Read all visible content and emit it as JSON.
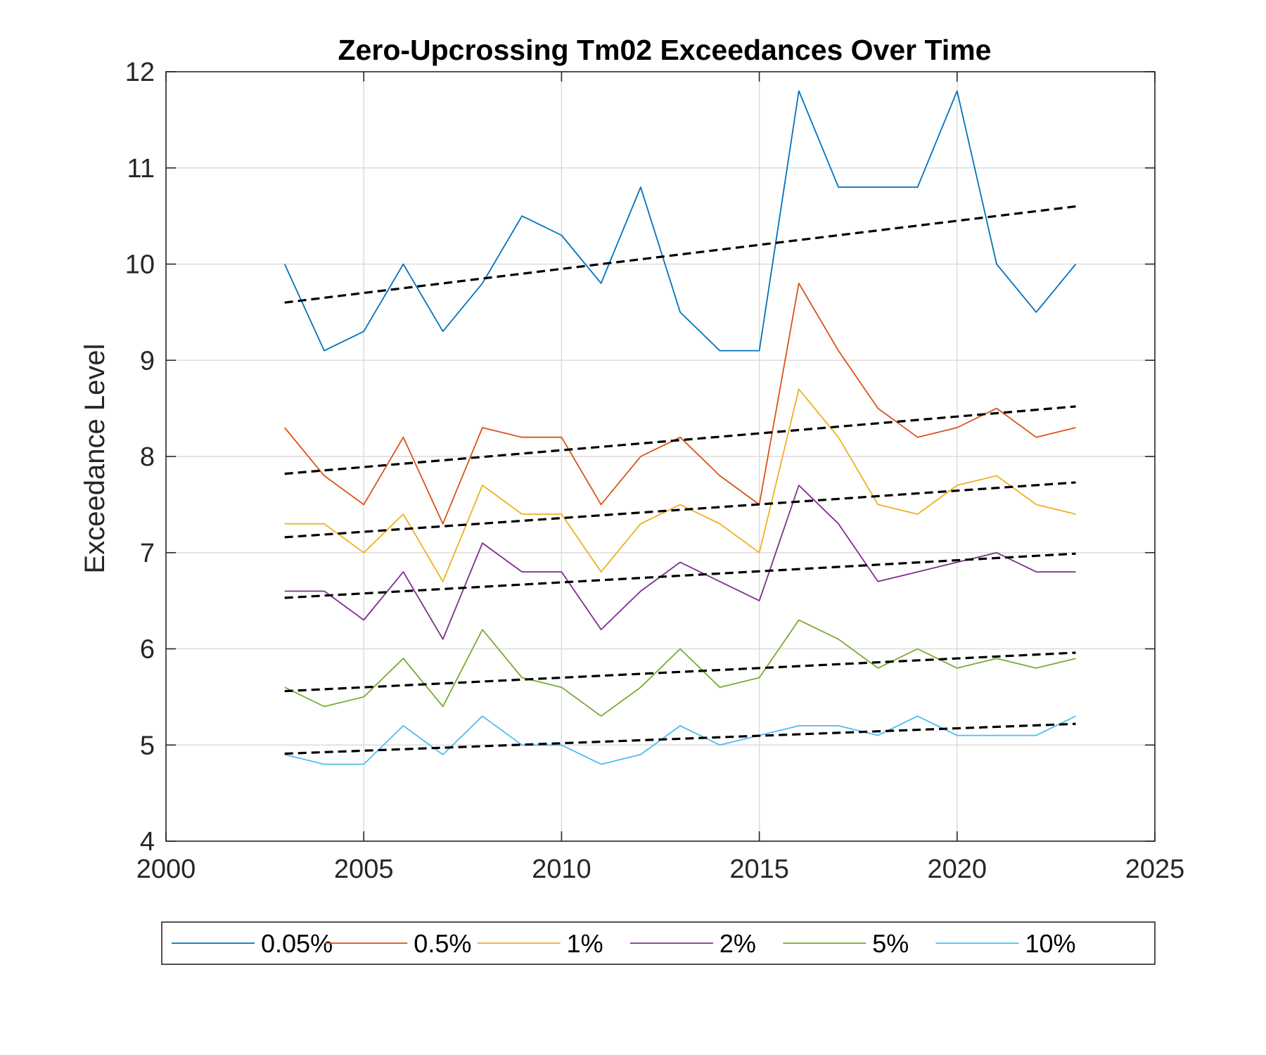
{
  "chart_data": {
    "type": "line",
    "title": "Zero-Upcrossing Tm02 Exceedances Over Time",
    "xlabel": "",
    "ylabel": "Exceedance Level",
    "xlim": [
      2000,
      2025
    ],
    "ylim": [
      4,
      12
    ],
    "xticks": [
      2000,
      2005,
      2010,
      2015,
      2020,
      2025
    ],
    "yticks": [
      4,
      5,
      6,
      7,
      8,
      9,
      10,
      11,
      12
    ],
    "xtick_labels": [
      "2000",
      "2005",
      "2010",
      "2015",
      "2020",
      "2025"
    ],
    "ytick_labels": [
      "4",
      "5",
      "6",
      "7",
      "8",
      "9",
      "10",
      "11",
      "12"
    ],
    "grid": true,
    "legend_position": "bottom-outside",
    "x": [
      2003,
      2004,
      2005,
      2006,
      2007,
      2008,
      2009,
      2010,
      2011,
      2012,
      2013,
      2014,
      2015,
      2016,
      2017,
      2018,
      2019,
      2020,
      2021,
      2022,
      2023
    ],
    "series": [
      {
        "name": "0.05%",
        "color": "#0072BD",
        "values": [
          10.0,
          9.1,
          9.3,
          10.0,
          9.3,
          9.8,
          10.5,
          10.3,
          9.8,
          10.8,
          9.5,
          9.1,
          9.1,
          11.8,
          10.8,
          10.8,
          10.8,
          11.8,
          10.0,
          9.5,
          10.0
        ]
      },
      {
        "name": "0.5%",
        "color": "#D95319",
        "values": [
          8.3,
          7.8,
          7.5,
          8.2,
          7.3,
          8.3,
          8.2,
          8.2,
          7.5,
          8.0,
          8.2,
          7.8,
          7.5,
          9.8,
          9.1,
          8.5,
          8.2,
          8.3,
          8.5,
          8.2,
          8.3
        ]
      },
      {
        "name": "1%",
        "color": "#EDB120",
        "values": [
          7.3,
          7.3,
          7.0,
          7.4,
          6.7,
          7.7,
          7.4,
          7.4,
          6.8,
          7.3,
          7.5,
          7.3,
          7.0,
          8.7,
          8.2,
          7.5,
          7.4,
          7.7,
          7.8,
          7.5,
          7.4
        ]
      },
      {
        "name": "2%",
        "color": "#7E2F8E",
        "values": [
          6.6,
          6.6,
          6.3,
          6.8,
          6.1,
          7.1,
          6.8,
          6.8,
          6.2,
          6.6,
          6.9,
          6.7,
          6.5,
          7.7,
          7.3,
          6.7,
          6.8,
          6.9,
          7.0,
          6.8,
          6.8
        ]
      },
      {
        "name": "5%",
        "color": "#77AC30",
        "values": [
          5.6,
          5.4,
          5.5,
          5.9,
          5.4,
          6.2,
          5.7,
          5.6,
          5.3,
          5.6,
          6.0,
          5.6,
          5.7,
          6.3,
          6.1,
          5.8,
          6.0,
          5.8,
          5.9,
          5.8,
          5.9
        ]
      },
      {
        "name": "10%",
        "color": "#4DBEEE",
        "values": [
          4.9,
          4.8,
          4.8,
          5.2,
          4.9,
          5.3,
          5.0,
          5.0,
          4.8,
          4.9,
          5.2,
          5.0,
          5.1,
          5.2,
          5.2,
          5.1,
          5.3,
          5.1,
          5.1,
          5.1,
          5.3
        ]
      }
    ],
    "trend_lines": [
      {
        "color": "#000000",
        "x": [
          2003,
          2023
        ],
        "y": [
          9.6,
          10.6
        ]
      },
      {
        "color": "#000000",
        "x": [
          2003,
          2023
        ],
        "y": [
          7.82,
          8.52
        ]
      },
      {
        "color": "#000000",
        "x": [
          2003,
          2023
        ],
        "y": [
          7.16,
          7.73
        ]
      },
      {
        "color": "#000000",
        "x": [
          2003,
          2023
        ],
        "y": [
          6.53,
          6.99
        ]
      },
      {
        "color": "#000000",
        "x": [
          2003,
          2023
        ],
        "y": [
          5.56,
          5.96
        ]
      },
      {
        "color": "#000000",
        "x": [
          2003,
          2023
        ],
        "y": [
          4.91,
          5.22
        ]
      }
    ]
  }
}
